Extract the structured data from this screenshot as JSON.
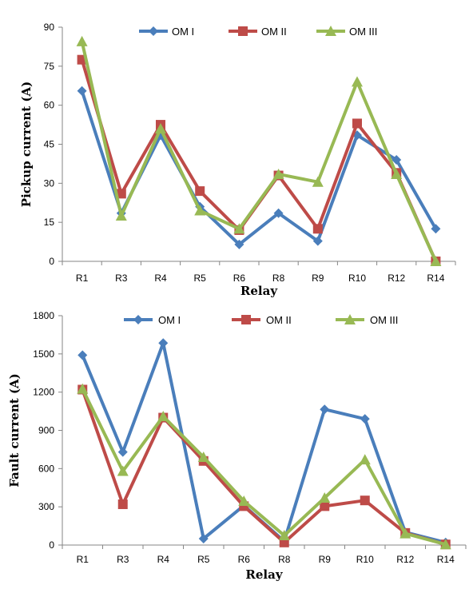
{
  "colors": {
    "OM I": "#4a7ebb",
    "OM II": "#be4b48",
    "OM III": "#98b954"
  },
  "chart_data": [
    {
      "type": "line",
      "categories": [
        "R1",
        "R3",
        "R4",
        "R5",
        "R6",
        "R8",
        "R9",
        "R10",
        "R12",
        "R14"
      ],
      "series": [
        {
          "name": "OM I",
          "marker": "diamond",
          "values": [
            65.5,
            18.5,
            48.5,
            21,
            6.5,
            18.5,
            7.8,
            48.5,
            39,
            12.5
          ]
        },
        {
          "name": "OM II",
          "marker": "square",
          "values": [
            77.5,
            26,
            52.5,
            27,
            12,
            33,
            12.5,
            53,
            34,
            0
          ]
        },
        {
          "name": "OM III",
          "marker": "triangle",
          "values": [
            84.5,
            17.5,
            51,
            19.5,
            12.5,
            33.5,
            30.5,
            69,
            33.5,
            0
          ]
        }
      ],
      "xlabel": "Relay",
      "ylabel": "Pickup current (A)",
      "ylim": [
        0,
        90
      ],
      "yticks": [
        "0",
        "15",
        "30",
        "45",
        "60",
        "75",
        "90"
      ],
      "grid": false,
      "legend": "top"
    },
    {
      "type": "line",
      "categories": [
        "R1",
        "R3",
        "R4",
        "R5",
        "R6",
        "R8",
        "R9",
        "R10",
        "R12",
        "R14"
      ],
      "series": [
        {
          "name": "OM I",
          "marker": "diamond",
          "values": [
            1490,
            730,
            1585,
            50,
            310,
            30,
            1065,
            990,
            100,
            20
          ]
        },
        {
          "name": "OM II",
          "marker": "square",
          "values": [
            1220,
            320,
            1000,
            660,
            305,
            20,
            305,
            350,
            95,
            5
          ]
        },
        {
          "name": "OM III",
          "marker": "triangle",
          "values": [
            1225,
            580,
            1010,
            690,
            345,
            75,
            370,
            670,
            90,
            5
          ]
        }
      ],
      "xlabel": "Relay",
      "ylabel": "Fault current (A)",
      "ylim": [
        0,
        1800
      ],
      "yticks": [
        "0",
        "300",
        "600",
        "900",
        "1200",
        "1500",
        "1800"
      ],
      "grid": false,
      "legend": "top"
    }
  ]
}
